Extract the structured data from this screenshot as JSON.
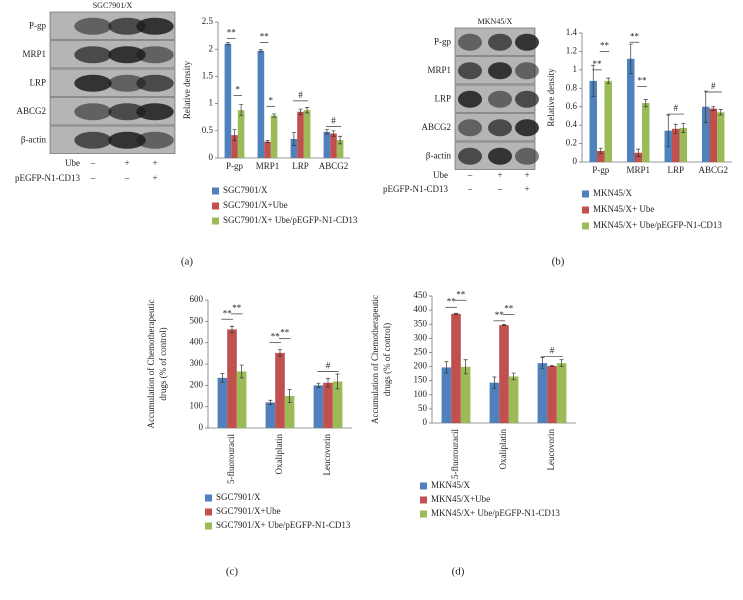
{
  "panels": [
    {
      "label": "(a)",
      "blot": {
        "title": "SGC7901/X",
        "rows": [
          "P-gp",
          "MRP1",
          "LRP",
          "ABCG2",
          "β-actin"
        ],
        "conditions": [
          {
            "label": "Ube",
            "marks": [
              "–",
              "+",
              "+"
            ]
          },
          {
            "label": "pEGFP-N1-CD13",
            "marks": [
              "–",
              "–",
              "+"
            ]
          }
        ]
      }
    },
    {
      "label": "(b)",
      "blot": {
        "title": "MKN45/X",
        "rows": [
          "P-gp",
          "MRP1",
          "LRP",
          "ABCG2",
          "β-actin"
        ],
        "conditions": [
          {
            "label": "Ube",
            "marks": [
              "–",
              "+",
              "+"
            ]
          },
          {
            "label": "pEGFP-N1-CD13",
            "marks": [
              "–",
              "–",
              "+"
            ]
          }
        ]
      }
    },
    {
      "label": "(c)"
    },
    {
      "label": "(d)"
    }
  ],
  "chart_data": [
    {
      "type": "bar",
      "ylabel": [
        "Relative density"
      ],
      "categories": [
        "P-gp",
        "MRP1",
        "LRP",
        "ABCG2"
      ],
      "ylim": [
        0,
        2.5
      ],
      "yticks": [
        0,
        0.5,
        1,
        1.5,
        2,
        2.5
      ],
      "series": [
        {
          "name": "SGC7901/X",
          "color": "#4f81bd",
          "values": [
            2.1,
            1.97,
            0.35,
            0.48
          ],
          "errors": [
            0.02,
            0.02,
            0.12,
            0.04
          ]
        },
        {
          "name": "SGC7901/X+Ube",
          "color": "#c0504d",
          "values": [
            0.42,
            0.3,
            0.85,
            0.45
          ],
          "errors": [
            0.1,
            0.02,
            0.05,
            0.05
          ]
        },
        {
          "name": "SGC7901/X+ Ube/pEGFP-N1-CD13",
          "color": "#9bbb59",
          "values": [
            0.88,
            0.78,
            0.88,
            0.33
          ],
          "errors": [
            0.1,
            0.03,
            0.05,
            0.07
          ]
        }
      ],
      "annotations": [
        {
          "text": "**",
          "category": "P-gp",
          "series": [
            "SGC7901/X",
            "SGC7901/X+Ube"
          ],
          "y": 2.2
        },
        {
          "text": "*",
          "category": "P-gp",
          "series": [
            "SGC7901/X+Ube",
            "SGC7901/X+ Ube/pEGFP-N1-CD13"
          ],
          "y": 1.15
        },
        {
          "text": "**",
          "category": "MRP1",
          "series": [
            "SGC7901/X",
            "SGC7901/X+Ube"
          ],
          "y": 2.12
        },
        {
          "text": "*",
          "category": "MRP1",
          "series": [
            "SGC7901/X+Ube",
            "SGC7901/X+ Ube/pEGFP-N1-CD13"
          ],
          "y": 0.95
        },
        {
          "text": "#",
          "category": "LRP",
          "series": [
            "SGC7901/X",
            "SGC7901/X+ Ube/pEGFP-N1-CD13"
          ],
          "y": 1.05
        },
        {
          "text": "#",
          "category": "ABCG2",
          "series": [
            "SGC7901/X",
            "SGC7901/X+ Ube/pEGFP-N1-CD13"
          ],
          "y": 0.58
        }
      ]
    },
    {
      "type": "bar",
      "ylabel": [
        "Relative density"
      ],
      "categories": [
        "P-gp",
        "MRP1",
        "LRP",
        "ABCG2"
      ],
      "ylim": [
        0,
        1.4
      ],
      "yticks": [
        0,
        0.2,
        0.4,
        0.6,
        0.8,
        1,
        1.2,
        1.4
      ],
      "series": [
        {
          "name": "MKN45/X",
          "color": "#4f81bd",
          "values": [
            0.88,
            1.12,
            0.34,
            0.6
          ],
          "errors": [
            0.17,
            0.16,
            0.17,
            0.17
          ]
        },
        {
          "name": "MKN45/X+ Ube",
          "color": "#c0504d",
          "values": [
            0.12,
            0.1,
            0.36,
            0.58
          ],
          "errors": [
            0.03,
            0.04,
            0.05,
            0.02
          ]
        },
        {
          "name": "MKN45/X+ Ube/pEGFP-N1-CD13",
          "color": "#9bbb59",
          "values": [
            0.88,
            0.64,
            0.37,
            0.54
          ],
          "errors": [
            0.03,
            0.04,
            0.05,
            0.03
          ]
        }
      ],
      "annotations": [
        {
          "text": "**",
          "category": "P-gp",
          "series": [
            "MKN45/X",
            "MKN45/X+ Ube"
          ],
          "y": 1.0
        },
        {
          "text": "**",
          "category": "P-gp",
          "series": [
            "MKN45/X+ Ube",
            "MKN45/X+ Ube/pEGFP-N1-CD13"
          ],
          "y": 1.2
        },
        {
          "text": "**",
          "category": "MRP1",
          "series": [
            "MKN45/X",
            "MKN45/X+ Ube"
          ],
          "y": 1.3
        },
        {
          "text": "**",
          "category": "MRP1",
          "series": [
            "MKN45/X+ Ube",
            "MKN45/X+ Ube/pEGFP-N1-CD13"
          ],
          "y": 0.82
        },
        {
          "text": "#",
          "category": "LRP",
          "series": [
            "MKN45/X",
            "MKN45/X+ Ube/pEGFP-N1-CD13"
          ],
          "y": 0.52
        },
        {
          "text": "#",
          "category": "ABCG2",
          "series": [
            "MKN45/X",
            "MKN45/X+ Ube/pEGFP-N1-CD13"
          ],
          "y": 0.76
        }
      ]
    },
    {
      "type": "bar",
      "ylabel": [
        "Accumulation of Chemotherapeutic",
        "drugs (% of control)"
      ],
      "categories": [
        "5-fluorouracil",
        "Oxaliplatin",
        "Leucovorin"
      ],
      "ylim": [
        0,
        600
      ],
      "yticks": [
        0,
        100,
        200,
        300,
        400,
        500,
        600
      ],
      "series": [
        {
          "name": "SGC7901/X",
          "color": "#4f81bd",
          "values": [
            235,
            120,
            200
          ],
          "errors": [
            20,
            10,
            10
          ]
        },
        {
          "name": "SGC7901/X+Ube",
          "color": "#c0504d",
          "values": [
            462,
            352,
            212
          ],
          "errors": [
            15,
            15,
            20
          ]
        },
        {
          "name": "SGC7901/X+ Ube/pEGFP-N1-CD13",
          "color": "#9bbb59",
          "values": [
            265,
            150,
            218
          ],
          "errors": [
            30,
            30,
            35
          ]
        }
      ],
      "annotations": [
        {
          "text": "**",
          "category": "5-fluorouracil",
          "series": [
            "SGC7901/X",
            "SGC7901/X+Ube"
          ],
          "y": 510
        },
        {
          "text": "**",
          "category": "5-fluorouracil",
          "series": [
            "SGC7901/X+Ube",
            "SGC7901/X+ Ube/pEGFP-N1-CD13"
          ],
          "y": 535
        },
        {
          "text": "**",
          "category": "Oxaliplatin",
          "series": [
            "SGC7901/X",
            "SGC7901/X+Ube"
          ],
          "y": 400
        },
        {
          "text": "**",
          "category": "Oxaliplatin",
          "series": [
            "SGC7901/X+Ube",
            "SGC7901/X+ Ube/pEGFP-N1-CD13"
          ],
          "y": 420
        },
        {
          "text": "#",
          "category": "Leucovorin",
          "series": [
            "SGC7901/X",
            "SGC7901/X+ Ube/pEGFP-N1-CD13"
          ],
          "y": 265
        }
      ]
    },
    {
      "type": "bar",
      "ylabel": [
        "Accumulation of Chemotherapeutic",
        "drugs (% of control)"
      ],
      "categories": [
        "5-fluorouracil",
        "Oxaliplatin",
        "Leucovorin"
      ],
      "ylim": [
        0,
        450
      ],
      "yticks": [
        0,
        50,
        100,
        150,
        200,
        250,
        300,
        350,
        400,
        450
      ],
      "series": [
        {
          "name": "MKN45/X",
          "color": "#4f81bd",
          "values": [
            197,
            143,
            212
          ],
          "errors": [
            20,
            20,
            20
          ]
        },
        {
          "name": "MKN45/X+Ube",
          "color": "#c0504d",
          "values": [
            387,
            347,
            202
          ],
          "errors": [
            2,
            2,
            2
          ]
        },
        {
          "name": "MKN45/X+ Ube/pEGFP-N1-CD13",
          "color": "#9bbb59",
          "values": [
            199,
            165,
            212
          ],
          "errors": [
            25,
            12,
            12
          ]
        }
      ],
      "annotations": [
        {
          "text": "**",
          "category": "5-fluorouracil",
          "series": [
            "MKN45/X",
            "MKN45/X+Ube"
          ],
          "y": 410
        },
        {
          "text": "**",
          "category": "5-fluorouracil",
          "series": [
            "MKN45/X+Ube",
            "MKN45/X+ Ube/pEGFP-N1-CD13"
          ],
          "y": 435
        },
        {
          "text": "**",
          "category": "Oxaliplatin",
          "series": [
            "MKN45/X",
            "MKN45/X+Ube"
          ],
          "y": 362
        },
        {
          "text": "**",
          "category": "Oxaliplatin",
          "series": [
            "MKN45/X+Ube",
            "MKN45/X+ Ube/pEGFP-N1-CD13"
          ],
          "y": 385
        },
        {
          "text": "#",
          "category": "Leucovorin",
          "series": [
            "MKN45/X",
            "MKN45/X+ Ube/pEGFP-N1-CD13"
          ],
          "y": 235
        }
      ]
    }
  ]
}
